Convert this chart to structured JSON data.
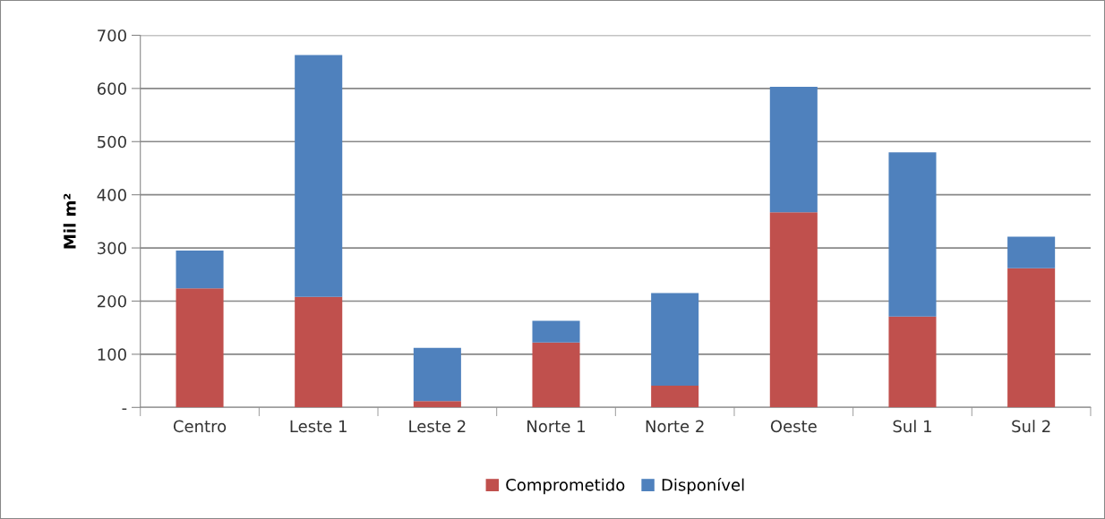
{
  "chart_data": {
    "type": "bar",
    "stacked": true,
    "ylabel": "Mil m²",
    "categories": [
      "Centro",
      "Leste 1",
      "Leste 2",
      "Norte 1",
      "Norte 2",
      "Oeste",
      "Sul 1",
      "Sul 2"
    ],
    "series": [
      {
        "name": "Comprometido",
        "color": "#c0504d",
        "values": [
          224,
          208,
          12,
          122,
          41,
          367,
          171,
          262
        ]
      },
      {
        "name": "Disponível",
        "color": "#4f81bd",
        "values": [
          71,
          455,
          100,
          41,
          174,
          236,
          309,
          59
        ]
      }
    ],
    "ylim": [
      0,
      700
    ],
    "yticks": [
      {
        "value": 0,
        "label": "-"
      },
      100,
      200,
      300,
      400,
      500,
      600,
      700
    ],
    "grid": "y",
    "legend": "bottom"
  }
}
